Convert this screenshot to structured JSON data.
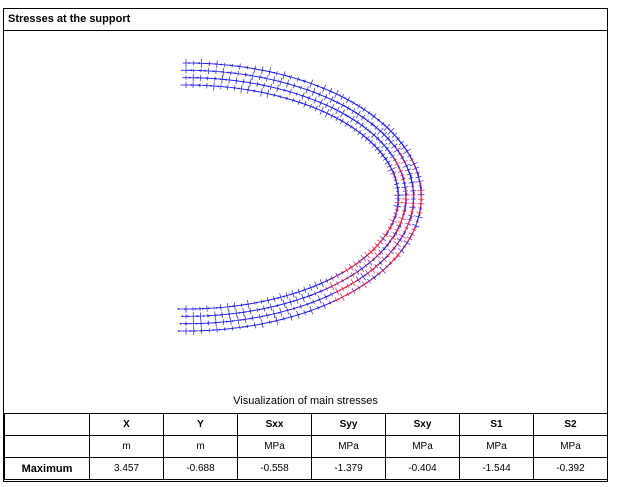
{
  "panel": {
    "title": "Stresses at the support",
    "caption": "Visualization of main stresses"
  },
  "table": {
    "columns": [
      "X",
      "Y",
      "Sxx",
      "Syy",
      "Sxy",
      "S1",
      "S2"
    ],
    "units": [
      "m",
      "m",
      "MPa",
      "MPa",
      "MPa",
      "MPa",
      "MPa"
    ],
    "rows": [
      {
        "label": "Maximum",
        "values": [
          "3.457",
          "-0.688",
          "-0.558",
          "-1.379",
          "-0.404",
          "-1.544",
          "-0.392"
        ]
      }
    ]
  },
  "colors": {
    "compression_vectors": "#2222ee",
    "tension_vectors": "#ee2244"
  }
}
